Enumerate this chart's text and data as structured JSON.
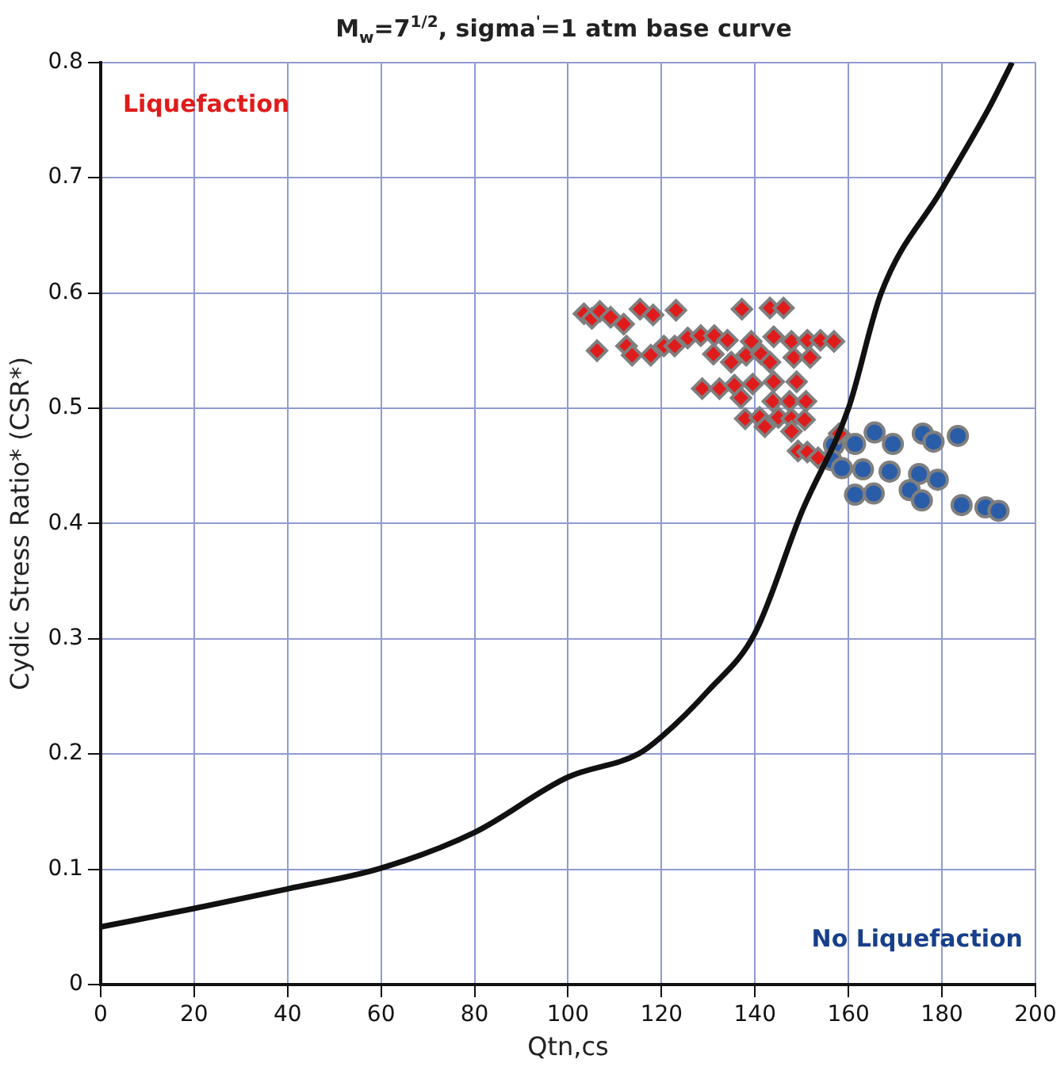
{
  "chart_data": {
    "type": "scatter",
    "title": "M$_{w}$=7$^{1/2}$, sigma$^{'}$=1 atm base curve",
    "xlabel": "Qtn,cs",
    "ylabel": "Cydic Stress Ratio* (CSR*)",
    "xlim": [
      0,
      200
    ],
    "xticks": [
      0,
      20,
      40,
      60,
      80,
      100,
      120,
      140,
      160,
      180,
      200
    ],
    "ylim": [
      0,
      0.8
    ],
    "yticks": [
      0,
      0.1,
      0.2,
      0.3,
      0.4,
      0.5,
      0.6,
      0.7,
      0.8
    ],
    "grid": true,
    "legend": false,
    "annotations": [
      "Liquefaction",
      "No Liquefaction"
    ],
    "series": [
      {
        "type": "line",
        "color": "#111111",
        "marker": "none",
        "line_style": "solid",
        "x": [
          0,
          20,
          40,
          60,
          80,
          100,
          115,
          120,
          130,
          140,
          150,
          160,
          167,
          180,
          190,
          195
        ],
        "values": [
          0.05,
          0.066,
          0.083,
          0.101,
          0.132,
          0.18,
          0.2,
          0.215,
          0.255,
          0.305,
          0.41,
          0.5,
          0.6,
          0.69,
          0.76,
          0.8
        ]
      },
      {
        "color": "#e01b1b",
        "marker": "diamond",
        "x": [
          103.4,
          105.1,
          106.8,
          109.1,
          111.9,
          115.4,
          118.2,
          123.1,
          137.2,
          143.2,
          146.1,
          106.2,
          112.5,
          113.7,
          117.7,
          120.5,
          122.8,
          125.6,
          128.4,
          131.3,
          131.1,
          134.1,
          134.9,
          138.1,
          139.2,
          141.3,
          143.2,
          144.0,
          147.8,
          148.3,
          151.2,
          151.8,
          154.0,
          156.9,
          128.7,
          132.4,
          135.6,
          137.0,
          139.5,
          143.8,
          144.0,
          147.4,
          148.9,
          150.9,
          137.9,
          141.0,
          145.0,
          142.1,
          147.8,
          147.8,
          150.6,
          158.0,
          149.2,
          151.2,
          153.5
        ],
        "values": [
          0.582,
          0.578,
          0.584,
          0.579,
          0.573,
          0.586,
          0.581,
          0.585,
          0.586,
          0.587,
          0.587,
          0.55,
          0.554,
          0.546,
          0.546,
          0.554,
          0.554,
          0.561,
          0.563,
          0.563,
          0.547,
          0.559,
          0.54,
          0.546,
          0.558,
          0.547,
          0.54,
          0.562,
          0.558,
          0.544,
          0.559,
          0.544,
          0.559,
          0.558,
          0.517,
          0.517,
          0.52,
          0.509,
          0.521,
          0.506,
          0.523,
          0.506,
          0.523,
          0.506,
          0.491,
          0.492,
          0.492,
          0.484,
          0.491,
          0.48,
          0.49,
          0.478,
          0.463,
          0.462,
          0.457
        ]
      },
      {
        "color": "#2a5da8",
        "marker": "circle",
        "x": [
          156.9,
          161.4,
          165.6,
          169.5,
          175.9,
          178.2,
          183.4,
          156.3,
          158.6,
          163.1,
          168.8,
          175.1,
          179.1,
          161.4,
          165.4,
          173.1,
          175.7,
          184.2,
          189.3,
          192.1
        ],
        "values": [
          0.468,
          0.469,
          0.479,
          0.469,
          0.478,
          0.471,
          0.476,
          0.455,
          0.448,
          0.447,
          0.445,
          0.443,
          0.438,
          0.425,
          0.426,
          0.429,
          0.42,
          0.416,
          0.414,
          0.411
        ]
      }
    ]
  }
}
